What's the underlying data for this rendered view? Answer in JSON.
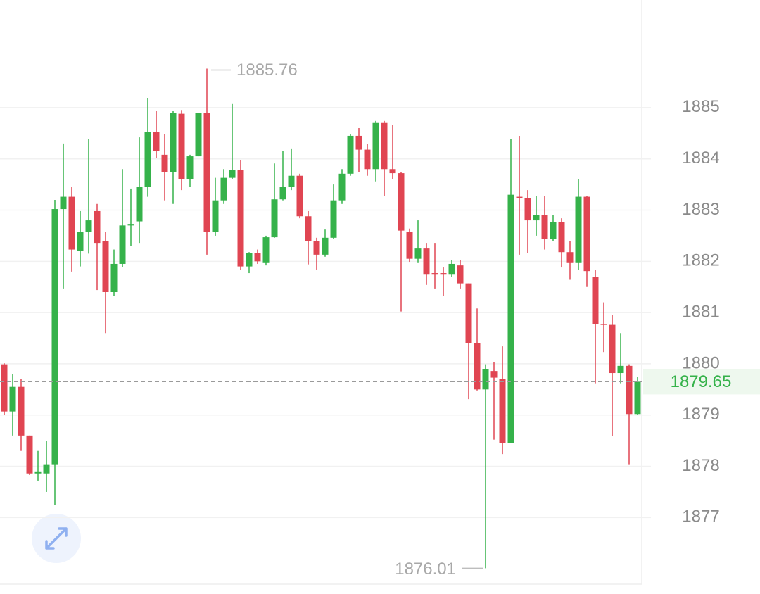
{
  "chart_data": {
    "type": "candlestick",
    "open": [
      1879.99,
      1879.07,
      1879.55,
      1878.6,
      1877.86,
      1877.86,
      1878.04,
      1883.02,
      1883.26,
      1882.2,
      1882.57,
      1882.98,
      1882.39,
      1881.4,
      1881.95,
      1882.7,
      1882.78,
      1883.46,
      1884.53,
      1884.08,
      1883.74,
      1884.88,
      1883.6,
      1884.05,
      1884.9,
      1882.57,
      1883.19,
      1883.63,
      1883.78,
      1881.9,
      1882.16,
      1881.98,
      1882.47,
      1883.21,
      1883.46,
      1883.67,
      1882.88,
      1882.39,
      1882.13,
      1882.46,
      1883.19,
      1883.71,
      1884.45,
      1884.18,
      1883.8,
      1884.7,
      1883.8,
      1883.72,
      1882.57,
      1882.05,
      1882.25,
      1881.77,
      1881.77,
      1881.74,
      1881.92,
      1881.57,
      1880.41,
      1879.5,
      1879.86,
      1879.71,
      1878.45,
      1883.26,
      1883.23,
      1882.8,
      1882.9,
      1882.43,
      1882.77,
      1882.18,
      1881.98,
      1883.26,
      1881.7,
      1880.78,
      1880.76,
      1879.82,
      1879.96,
      1879.02
    ],
    "high": [
      1880.01,
      1879.8,
      1879.7,
      1878.6,
      1878.3,
      1878.5,
      1883.2,
      1884.3,
      1883.46,
      1882.98,
      1884.38,
      1883.12,
      1882.57,
      1882.23,
      1883.8,
      1883.42,
      1884.42,
      1885.19,
      1884.93,
      1884.49,
      1884.93,
      1884.94,
      1884.08,
      1884.9,
      1885.76,
      1883.63,
      1883.8,
      1885.07,
      1883.97,
      1882.18,
      1882.23,
      1882.5,
      1883.91,
      1884.15,
      1884.19,
      1883.71,
      1882.98,
      1882.46,
      1882.62,
      1883.5,
      1883.8,
      1884.49,
      1884.6,
      1884.29,
      1884.74,
      1884.74,
      1884.66,
      1883.74,
      1882.64,
      1882.8,
      1882.36,
      1882.36,
      1881.88,
      1882.02,
      1882.02,
      1881.57,
      1881.08,
      1879.99,
      1880.03,
      1880.34,
      1884.38,
      1884.45,
      1883.39,
      1883.28,
      1883.28,
      1882.9,
      1882.84,
      1882.39,
      1883.6,
      1883.28,
      1881.84,
      1881.2,
      1880.95,
      1880.6,
      1879.99,
      1879.74
    ],
    "low": [
      1879.0,
      1878.6,
      1878.3,
      1877.83,
      1877.72,
      1877.5,
      1877.25,
      1881.47,
      1881.8,
      1881.9,
      1882.15,
      1881.44,
      1880.6,
      1881.33,
      1881.88,
      1882.3,
      1882.36,
      1883.26,
      1884.01,
      1883.19,
      1883.12,
      1883.39,
      1883.46,
      1884.05,
      1882.13,
      1882.5,
      1883.12,
      1883.6,
      1881.83,
      1881.77,
      1881.95,
      1881.92,
      1882.46,
      1883.19,
      1883.39,
      1882.84,
      1881.94,
      1881.84,
      1882.09,
      1882.43,
      1883.12,
      1883.67,
      1883.74,
      1883.67,
      1883.56,
      1883.28,
      1883.6,
      1881.02,
      1881.99,
      1881.98,
      1881.54,
      1881.47,
      1881.33,
      1881.7,
      1881.47,
      1879.31,
      1879.48,
      1876.01,
      1878.52,
      1878.24,
      1878.45,
      1882.13,
      1882.16,
      1882.5,
      1882.23,
      1882.4,
      1881.88,
      1881.64,
      1881.84,
      1881.5,
      1879.62,
      1880.23,
      1878.59,
      1879.62,
      1878.04,
      1879.0
    ],
    "close": [
      1879.07,
      1879.55,
      1878.6,
      1877.86,
      1877.9,
      1878.04,
      1883.02,
      1883.26,
      1882.23,
      1882.57,
      1882.8,
      1882.36,
      1881.4,
      1881.95,
      1882.7,
      1882.73,
      1883.46,
      1884.53,
      1884.15,
      1883.74,
      1884.9,
      1883.6,
      1884.05,
      1884.9,
      1882.57,
      1883.19,
      1883.63,
      1883.78,
      1881.9,
      1882.16,
      1882.0,
      1882.47,
      1883.21,
      1883.46,
      1883.67,
      1882.88,
      1882.39,
      1882.13,
      1882.46,
      1883.19,
      1883.71,
      1884.45,
      1884.18,
      1883.8,
      1884.7,
      1883.8,
      1883.72,
      1882.6,
      1882.05,
      1882.25,
      1881.74,
      1881.74,
      1881.74,
      1881.95,
      1881.57,
      1880.41,
      1879.5,
      1879.89,
      1879.73,
      1878.45,
      1883.3,
      1883.23,
      1882.8,
      1882.9,
      1882.43,
      1882.77,
      1882.18,
      1881.98,
      1883.26,
      1881.81,
      1880.78,
      1880.76,
      1879.82,
      1879.96,
      1879.02,
      1879.65
    ],
    "up_color": "#35b24a",
    "down_color": "#e04552",
    "ylim": [
      1875.7,
      1887.1
    ],
    "yticks": [
      1877,
      1878,
      1879,
      1880,
      1881,
      1882,
      1883,
      1884,
      1885
    ],
    "grid": true
  }
}
